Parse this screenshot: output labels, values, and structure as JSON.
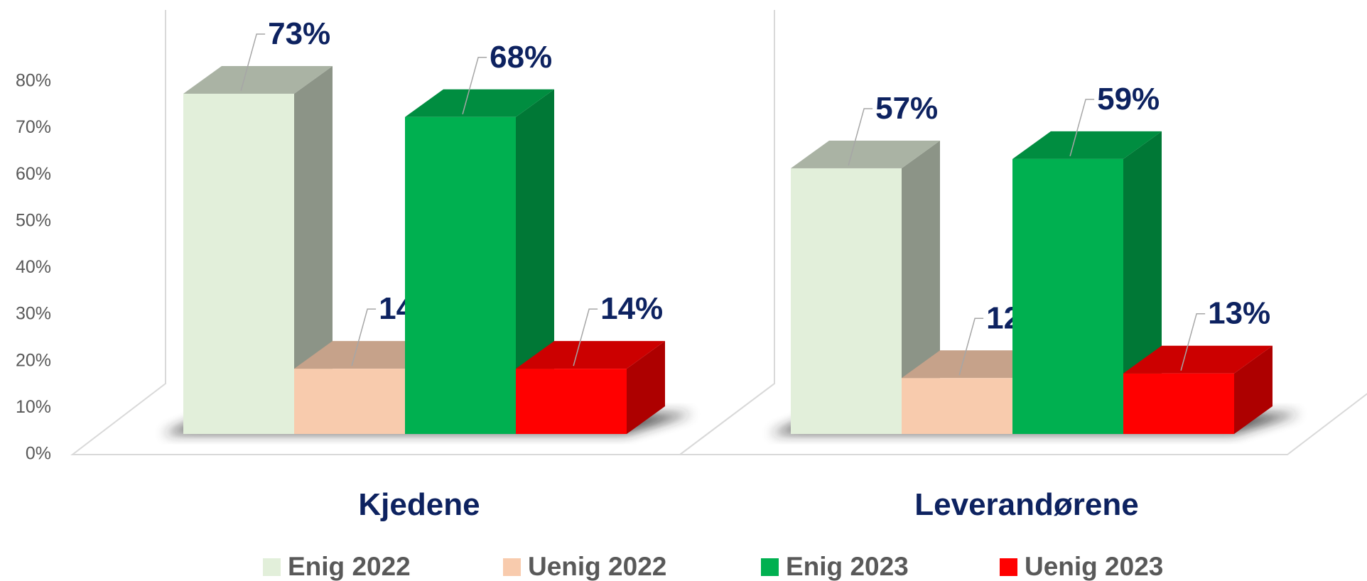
{
  "chart_data": {
    "type": "bar3d",
    "categories": [
      "Kjedene",
      "Leverandørene"
    ],
    "series": [
      {
        "name": "Enig 2022",
        "color": "#e2efda",
        "values": [
          73,
          57
        ],
        "value_labels": [
          "73%",
          "57%"
        ]
      },
      {
        "name": "Uenig 2022",
        "color": "#f8cbad",
        "values": [
          14,
          12
        ],
        "value_labels": [
          "14%",
          "12%"
        ]
      },
      {
        "name": "Enig 2023",
        "color": "#00b050",
        "values": [
          68,
          59
        ],
        "value_labels": [
          "68%",
          "59%"
        ]
      },
      {
        "name": "Uenig 2023",
        "color": "#ff0000",
        "values": [
          14,
          13
        ],
        "value_labels": [
          "14%",
          "13%"
        ]
      }
    ],
    "ylim": [
      0,
      80
    ],
    "yticks": [
      {
        "value": 0,
        "label": "0%"
      },
      {
        "value": 10,
        "label": "10%"
      },
      {
        "value": 20,
        "label": "20%"
      },
      {
        "value": 30,
        "label": "30%"
      },
      {
        "value": 40,
        "label": "40%"
      },
      {
        "value": 50,
        "label": "50%"
      },
      {
        "value": 60,
        "label": "60%"
      },
      {
        "value": 70,
        "label": "70%"
      },
      {
        "value": 80,
        "label": "80%"
      }
    ],
    "legend": "bottom"
  }
}
